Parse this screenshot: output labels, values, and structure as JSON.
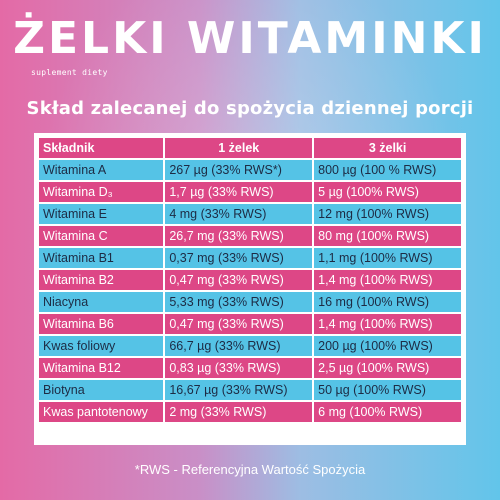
{
  "brand": {
    "title": "ŻELKI WITAMINKI",
    "subtitle": "suplement diety"
  },
  "heading": "Skład zalecanej do spożycia dziennej porcji",
  "table": {
    "headers": [
      "Składnik",
      "1 żelek",
      "3 żelki"
    ],
    "rows": [
      {
        "name": "Witamina A",
        "one": "267 µg (33% RWS*)",
        "three": "800 µg (100 % RWS)"
      },
      {
        "name": "Witamina D₃",
        "one": "1,7 µg (33% RWS)",
        "three": "5 µg (100% RWS)"
      },
      {
        "name": "Witamina E",
        "one": "4 mg (33% RWS)",
        "three": "12 mg (100% RWS)"
      },
      {
        "name": "Witamina C",
        "one": "26,7 mg (33% RWS)",
        "three": "80 mg (100% RWS)"
      },
      {
        "name": "Witamina B1",
        "one": "0,37 mg (33% RWS)",
        "three": "1,1 mg (100% RWS)"
      },
      {
        "name": "Witamina B2",
        "one": "0,47 mg (33% RWS)",
        "three": "1,4 mg (100% RWS)"
      },
      {
        "name": "Niacyna",
        "one": "5,33 mg (33% RWS)",
        "three": "16 mg (100% RWS)"
      },
      {
        "name": "Witamina B6",
        "one": "0,47 mg (33% RWS)",
        "three": "1,4 mg (100% RWS)"
      },
      {
        "name": "Kwas foliowy",
        "one": "66,7 µg (33% RWS)",
        "three": "200 µg (100% RWS)"
      },
      {
        "name": "Witamina B12",
        "one": "0,83 µg (33% RWS)",
        "three": "2,5 µg (100% RWS)"
      },
      {
        "name": "Biotyna",
        "one": "16,67 µg (33% RWS)",
        "three": "50 µg (100% RWS)"
      },
      {
        "name": "Kwas pantotenowy",
        "one": "2 mg (33% RWS)",
        "three": "6 mg (100% RWS)"
      }
    ]
  },
  "footnote": "*RWS - Referencyjna Wartość Spożycia",
  "colors": {
    "pink_row": "#dd4786",
    "blue_row": "#55c3e6",
    "text_light": "#ffffff",
    "text_dark": "#1d2b44"
  }
}
